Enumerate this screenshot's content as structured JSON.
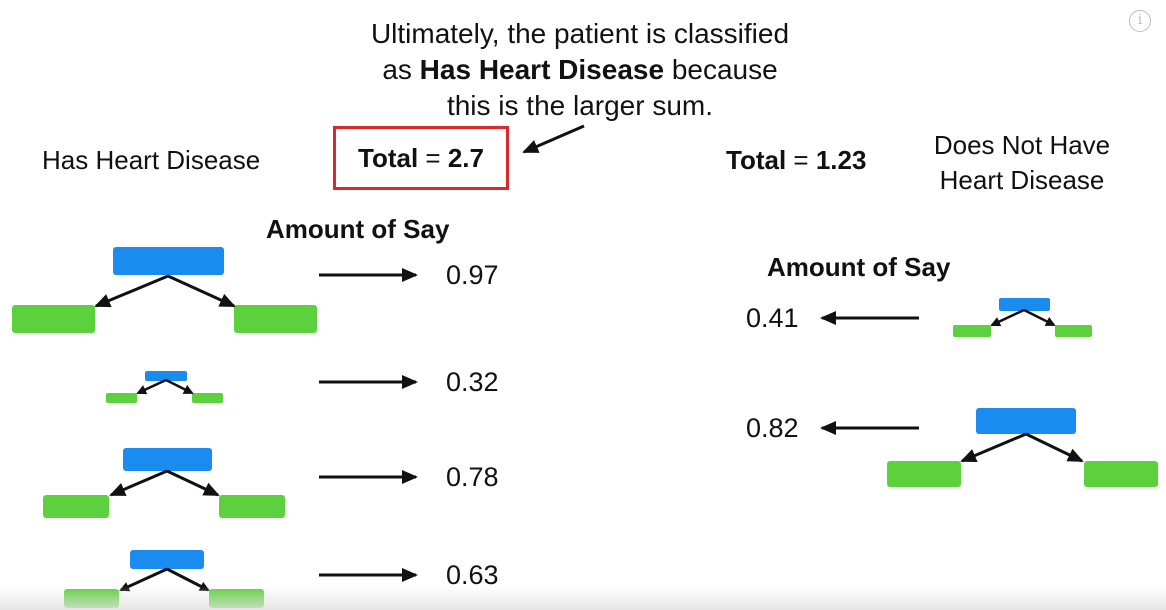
{
  "caption": {
    "line1": "Ultimately, the patient is classified",
    "line2_prefix": "as ",
    "line2_bold": "Has Heart Disease",
    "line2_suffix": " because",
    "line3": "this is the larger sum."
  },
  "left": {
    "class_label": "Has Heart Disease",
    "total_label": "Total",
    "total_equals": " = ",
    "total_value": "2.7",
    "amount_heading": "Amount of Say",
    "amounts": [
      "0.97",
      "0.32",
      "0.78",
      "0.63"
    ]
  },
  "right": {
    "class_label_line1": "Does Not Have",
    "class_label_line2": "Heart Disease",
    "total_label": "Total",
    "total_equals": " = ",
    "total_value": "1.23",
    "amount_heading": "Amount of Say",
    "amounts": [
      "0.41",
      "0.82"
    ]
  },
  "info_icon": {
    "name": "info-icon",
    "glyph": "i"
  },
  "colors": {
    "root_node": "#1a8cf0",
    "leaf_node": "#5dd13d",
    "highlight_box": "#d9292b",
    "arrow": "#111111"
  }
}
